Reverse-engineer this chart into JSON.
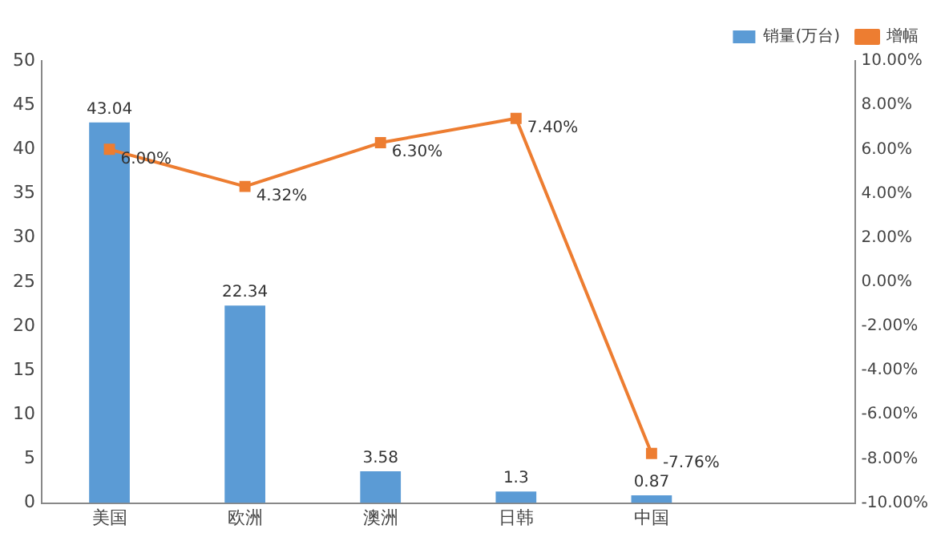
{
  "chart_data": {
    "type": "bar",
    "categories": [
      "美国",
      "欧洲",
      "澳洲",
      "日韩",
      "中国",
      null
    ],
    "series": [
      {
        "name": "销量(万台)",
        "color": "#5b9bd5",
        "values": [
          43.04,
          22.34,
          3.58,
          1.3,
          0.87,
          null
        ],
        "value_labels": [
          "43.04",
          "22.34",
          "3.58",
          "1.3",
          "0.87",
          null
        ]
      },
      {
        "name": "增幅",
        "type": "line",
        "axis": "y2",
        "color": "#ed7d31",
        "marker": "square",
        "values": [
          6.0,
          4.32,
          6.3,
          7.4,
          -7.76,
          null
        ],
        "value_labels": [
          "6.00%",
          "4.32%",
          "6.30%",
          "7.40%",
          "-7.76%",
          null
        ]
      }
    ],
    "ylim": [
      0,
      50
    ],
    "yticks": [
      0,
      5,
      10,
      15,
      20,
      25,
      30,
      35,
      40,
      45,
      50
    ],
    "y2lim": [
      -10,
      10
    ],
    "y2ticks": [
      {
        "value": -10,
        "label": "-10.00%"
      },
      {
        "value": -8,
        "label": "-8.00%"
      },
      {
        "value": -6,
        "label": "-6.00%"
      },
      {
        "value": -4,
        "label": "-4.00%"
      },
      {
        "value": -2,
        "label": "-2.00%"
      },
      {
        "value": 0,
        "label": "0.00%"
      },
      {
        "value": 2,
        "label": "2.00%"
      },
      {
        "value": 4,
        "label": "4.00%"
      },
      {
        "value": 6,
        "label": "6.00%"
      },
      {
        "value": 8,
        "label": "8.00%"
      },
      {
        "value": 10,
        "label": "10.00%"
      }
    ],
    "legend": "top right"
  }
}
